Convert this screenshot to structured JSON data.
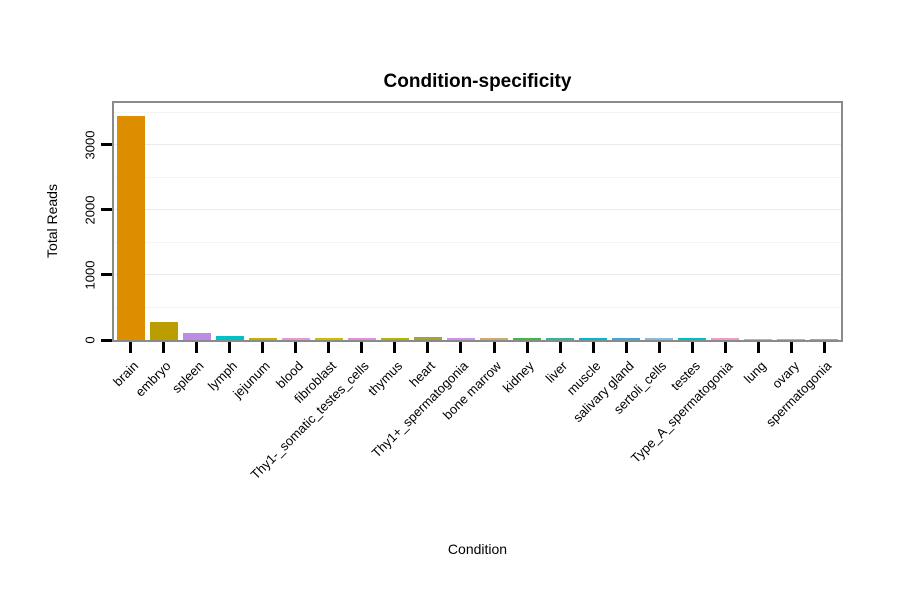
{
  "chart_data": {
    "type": "bar",
    "title": "Condition-specificity",
    "xlabel": "Condition",
    "ylabel": "Total Reads",
    "categories": [
      "brain",
      "embryo",
      "spleen",
      "lymph",
      "jejunum",
      "blood",
      "fibroblast",
      "Thy1-_somatic_testes_cells",
      "thymus",
      "heart",
      "Thy1+_spermatogonia",
      "bone marrow",
      "kidney",
      "liver",
      "muscle",
      "salivary gland",
      "sertoli_cells",
      "testes",
      "Type_A_spermatogonia",
      "lung",
      "ovary",
      "spermatogonia"
    ],
    "values": [
      3434,
      281,
      103,
      62,
      38,
      32,
      35,
      33,
      28,
      42,
      34,
      31,
      33,
      30,
      32,
      31,
      29,
      30,
      28,
      12,
      9,
      5
    ],
    "colors": [
      "#DD8D00",
      "#BC9D00",
      "#BD8CE6",
      "#00C2C6",
      "#C7B000",
      "#E49BD4",
      "#CDBE00",
      "#E68FD9",
      "#B3B300",
      "#A8A32A",
      "#CE93E8",
      "#CFA96F",
      "#45B54A",
      "#2FB79B",
      "#00B9CE",
      "#3FA7DC",
      "#86BCE2",
      "#00BFC4",
      "#EF9CCB",
      "#D49FDD",
      "#BFC24A",
      "#D8A13A"
    ],
    "ylim": [
      0,
      3640
    ],
    "yticks": [
      0,
      1000,
      2000,
      3000
    ],
    "grid": true,
    "legend": false,
    "frame_color": "#8a8a8a",
    "background": "#ffffff",
    "x_tick_label_angle": 45
  }
}
